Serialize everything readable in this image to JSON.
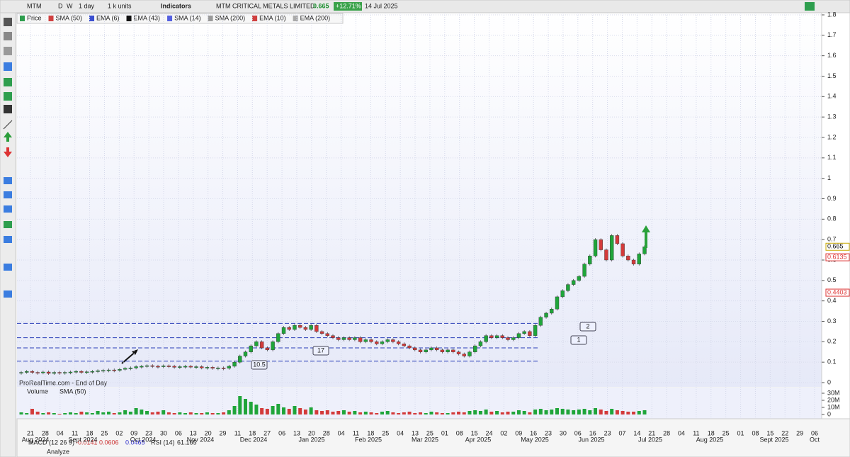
{
  "toolbar": {
    "symbol": "MTM",
    "periods": [
      "D",
      "W"
    ],
    "interval": "1 day",
    "units": "1 k units",
    "indicators": "Indicators",
    "name": "MTM CRITICAL METALS LIMITED",
    "last": "0.665",
    "change": "+12.71%",
    "date": "14 Jul 2025"
  },
  "legend": [
    "Price",
    "SMA (50)",
    "EMA (6)",
    "EMA (43)",
    "SMA (14)",
    "SMA (200)",
    "EMA (10)",
    "EMA (200)"
  ],
  "source": "ProRealTime.com - End of Day",
  "volume_legend": [
    "Volume",
    "SMA (50)"
  ],
  "bottom": {
    "macd": "MACD (12 26 9)",
    "macd_values": [
      "-0.0141",
      "0.0606",
      "0.0465"
    ],
    "rsi": "RSI (14)",
    "rsi_value": "61.165",
    "analyze": "Analyze"
  },
  "annotations": [
    "10.5",
    "17",
    "1",
    "2"
  ],
  "date_axis": {
    "days": [
      "21",
      "28",
      "04",
      "11",
      "18",
      "25",
      "02",
      "09",
      "23",
      "30",
      "06",
      "13",
      "20",
      "29",
      "11",
      "18",
      "27",
      "06",
      "13",
      "20",
      "28",
      "04",
      "11",
      "18",
      "25",
      "04",
      "13",
      "25",
      "01",
      "08",
      "15",
      "24",
      "02",
      "09",
      "16",
      "23",
      "30",
      "06",
      "16",
      "23",
      "07",
      "14",
      "21",
      "28",
      "04",
      "11",
      "18",
      "25",
      "01",
      "08",
      "15",
      "22",
      "29",
      "06"
    ],
    "months": [
      "Aug 2024",
      "Sept 2024",
      "Oct 2024",
      "Nov 2024",
      "Dec 2024",
      "Jan 2025",
      "Feb 2025",
      "Mar 2025",
      "Apr 2025",
      "May 2025",
      "Jun 2025",
      "Jul 2025",
      "Aug 2025",
      "Sept 2025",
      "Oct"
    ]
  },
  "chart_data": [
    {
      "type": "candlestick",
      "ylim": [
        0,
        1.8
      ],
      "yticks": [
        0,
        0.1,
        0.2,
        0.3,
        0.4,
        0.5,
        0.6,
        0.7,
        0.8,
        0.9,
        1,
        1.1,
        1.2,
        1.3,
        1.4,
        1.5,
        1.6,
        1.7,
        1.8
      ],
      "grid": true,
      "up_color": "#1fa53a",
      "down_color": "#d33a3a",
      "levels": [
        0.29,
        0.22,
        0.17,
        0.105
      ],
      "price_labels": [
        {
          "value": 0.665,
          "label": "0.665"
        },
        {
          "value": 0.6135,
          "label": "0.6135"
        },
        {
          "value": 0.4403,
          "label": "0.4403"
        }
      ],
      "values": [
        0.05,
        0.055,
        0.05,
        0.048,
        0.052,
        0.045,
        0.05,
        0.047,
        0.05,
        0.052,
        0.055,
        0.05,
        0.053,
        0.055,
        0.058,
        0.06,
        0.062,
        0.06,
        0.065,
        0.07,
        0.072,
        0.078,
        0.08,
        0.083,
        0.08,
        0.078,
        0.082,
        0.08,
        0.075,
        0.078,
        0.08,
        0.076,
        0.078,
        0.072,
        0.075,
        0.07,
        0.072,
        0.07,
        0.08,
        0.1,
        0.13,
        0.15,
        0.18,
        0.2,
        0.17,
        0.16,
        0.2,
        0.24,
        0.27,
        0.26,
        0.28,
        0.27,
        0.26,
        0.28,
        0.25,
        0.24,
        0.23,
        0.22,
        0.21,
        0.22,
        0.21,
        0.22,
        0.2,
        0.21,
        0.2,
        0.19,
        0.2,
        0.21,
        0.2,
        0.19,
        0.18,
        0.17,
        0.16,
        0.15,
        0.16,
        0.17,
        0.16,
        0.15,
        0.16,
        0.15,
        0.14,
        0.13,
        0.15,
        0.18,
        0.2,
        0.23,
        0.22,
        0.23,
        0.22,
        0.21,
        0.22,
        0.24,
        0.25,
        0.23,
        0.28,
        0.32,
        0.34,
        0.36,
        0.42,
        0.45,
        0.48,
        0.5,
        0.52,
        0.58,
        0.62,
        0.7,
        0.65,
        0.6,
        0.72,
        0.68,
        0.62,
        0.6,
        0.58,
        0.63,
        0.665
      ]
    },
    {
      "type": "bar",
      "ylim": [
        0,
        33000000.0
      ],
      "yticks": [
        {
          "value": 30000000.0,
          "label": "30M"
        },
        {
          "value": 20000000.0,
          "label": "20M"
        },
        {
          "value": 10000000.0,
          "label": "10M"
        },
        0
      ],
      "values": [
        3000000.0,
        2000000.0,
        8000000.0,
        4000000.0,
        2000000.0,
        3000000.0,
        2000000.0,
        1000000.0,
        2000000.0,
        3000000.0,
        2000000.0,
        4000000.0,
        3000000.0,
        2000000.0,
        5000000.0,
        3000000.0,
        4000000.0,
        2000000.0,
        3000000.0,
        6000000.0,
        4000000.0,
        9000000.0,
        7000000.0,
        5000000.0,
        3000000.0,
        4000000.0,
        6000000.0,
        3000000.0,
        2000000.0,
        3000000.0,
        2000000.0,
        3000000.0,
        2000000.0,
        2000000.0,
        3000000.0,
        2000000.0,
        2000000.0,
        3000000.0,
        6000000.0,
        12000000.0,
        26000000.0,
        22000000.0,
        18000000.0,
        14000000.0,
        9000000.0,
        8000000.0,
        12000000.0,
        15000000.0,
        10000000.0,
        8000000.0,
        12000000.0,
        9000000.0,
        7000000.0,
        10000000.0,
        6000000.0,
        5000000.0,
        6000000.0,
        4000000.0,
        5000000.0,
        6000000.0,
        4000000.0,
        5000000.0,
        3000000.0,
        4000000.0,
        3000000.0,
        2000000.0,
        4000000.0,
        5000000.0,
        3000000.0,
        2000000.0,
        3000000.0,
        4000000.0,
        2000000.0,
        3000000.0,
        2000000.0,
        4000000.0,
        3000000.0,
        2000000.0,
        2000000.0,
        3000000.0,
        4000000.0,
        3000000.0,
        5000000.0,
        6000000.0,
        5000000.0,
        7000000.0,
        4000000.0,
        5000000.0,
        3000000.0,
        4000000.0,
        4000000.0,
        6000000.0,
        5000000.0,
        3000000.0,
        7000000.0,
        8000000.0,
        6000000.0,
        7000000.0,
        9000000.0,
        8000000.0,
        7000000.0,
        6000000.0,
        7000000.0,
        8000000.0,
        6000000.0,
        9000000.0,
        7000000.0,
        5000000.0,
        8000000.0,
        6000000.0,
        5000000.0,
        4000000.0,
        4000000.0,
        5000000.0,
        6000000.0
      ]
    }
  ]
}
